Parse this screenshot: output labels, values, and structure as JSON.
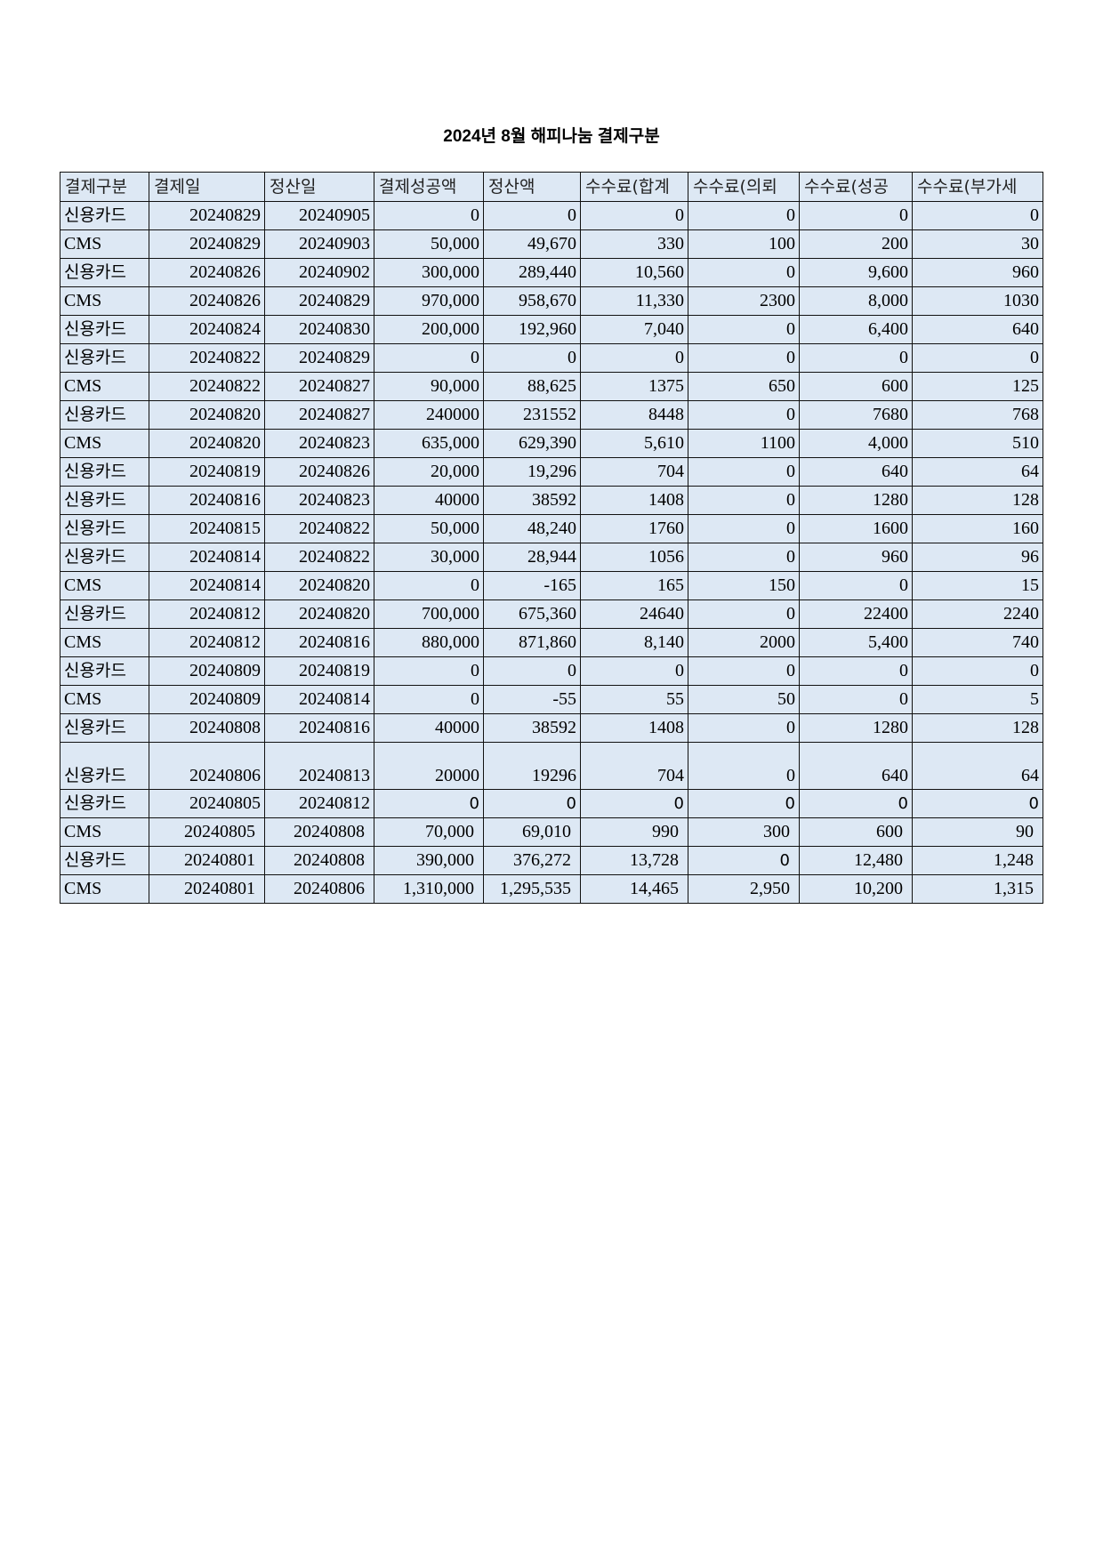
{
  "title": "2024년 8월 해피나눔 결제구분",
  "headers": [
    "결제구분",
    "결제일",
    "정산일",
    "결제성공액",
    "정산액",
    "수수료(합계",
    "수수료(의뢰",
    "수수료(성공",
    "수수료(부가세"
  ],
  "rows": [
    [
      "신용카드",
      "20240829",
      "20240905",
      "0",
      "0",
      "0",
      "0",
      "0",
      "0"
    ],
    [
      "CMS",
      "20240829",
      "20240903",
      "50,000",
      "49,670",
      "330",
      "100",
      "200",
      "30"
    ],
    [
      "신용카드",
      "20240826",
      "20240902",
      "300,000",
      "289,440",
      "10,560",
      "0",
      "9,600",
      "960"
    ],
    [
      "CMS",
      "20240826",
      "20240829",
      "970,000",
      "958,670",
      "11,330",
      "2300",
      "8,000",
      "1030"
    ],
    [
      "신용카드",
      "20240824",
      "20240830",
      "200,000",
      "192,960",
      "7,040",
      "0",
      "6,400",
      "640"
    ],
    [
      "신용카드",
      "20240822",
      "20240829",
      "0",
      "0",
      "0",
      "0",
      "0",
      "0"
    ],
    [
      "CMS",
      "20240822",
      "20240827",
      "90,000",
      "88,625",
      "1375",
      "650",
      "600",
      "125"
    ],
    [
      "신용카드",
      "20240820",
      "20240827",
      "240000",
      "231552",
      "8448",
      "0",
      "7680",
      "768"
    ],
    [
      "CMS",
      "20240820",
      "20240823",
      "635,000",
      "629,390",
      "5,610",
      "1100",
      "4,000",
      "510"
    ],
    [
      "신용카드",
      "20240819",
      "20240826",
      "20,000",
      "19,296",
      "704",
      "0",
      "640",
      "64"
    ],
    [
      "신용카드",
      "20240816",
      "20240823",
      "40000",
      "38592",
      "1408",
      "0",
      "1280",
      "128"
    ],
    [
      "신용카드",
      "20240815",
      "20240822",
      "50,000",
      "48,240",
      "1760",
      "0",
      "1600",
      "160"
    ],
    [
      "신용카드",
      "20240814",
      "20240822",
      "30,000",
      "28,944",
      "1056",
      "0",
      "960",
      "96"
    ],
    [
      "CMS",
      "20240814",
      "20240820",
      "0",
      "-165",
      "165",
      "150",
      "0",
      "15"
    ],
    [
      "신용카드",
      "20240812",
      "20240820",
      "700,000",
      "675,360",
      "24640",
      "0",
      "22400",
      "2240"
    ],
    [
      "CMS",
      "20240812",
      "20240816",
      "880,000",
      "871,860",
      "8,140",
      "2000",
      "5,400",
      "740"
    ],
    [
      "신용카드",
      "20240809",
      "20240819",
      "0",
      "0",
      "0",
      "0",
      "0",
      "0"
    ],
    [
      "CMS",
      "20240809",
      "20240814",
      "0",
      "-55",
      "55",
      "50",
      "0",
      "5"
    ],
    [
      "신용카드",
      "20240808",
      "20240816",
      "40000",
      "38592",
      "1408",
      "0",
      "1280",
      "128"
    ],
    [
      "신용카드",
      "20240806",
      "20240813",
      "20000",
      "19296",
      "704",
      "0",
      "640",
      "64"
    ],
    [
      "신용카드",
      "20240805",
      "20240812",
      "0",
      "0",
      "0",
      "0",
      "0",
      "0"
    ],
    [
      "CMS",
      "20240805",
      "20240808",
      "70,000",
      "69,010",
      "990",
      "300",
      "600",
      "90"
    ],
    [
      "신용카드",
      "20240801",
      "20240808",
      "390,000",
      "376,272",
      "13,728",
      "0",
      "12,480",
      "1,248"
    ],
    [
      "CMS",
      "20240801",
      "20240806",
      "1,310,000",
      "1,295,535",
      "14,465",
      "2,950",
      "10,200",
      "1,315"
    ]
  ]
}
